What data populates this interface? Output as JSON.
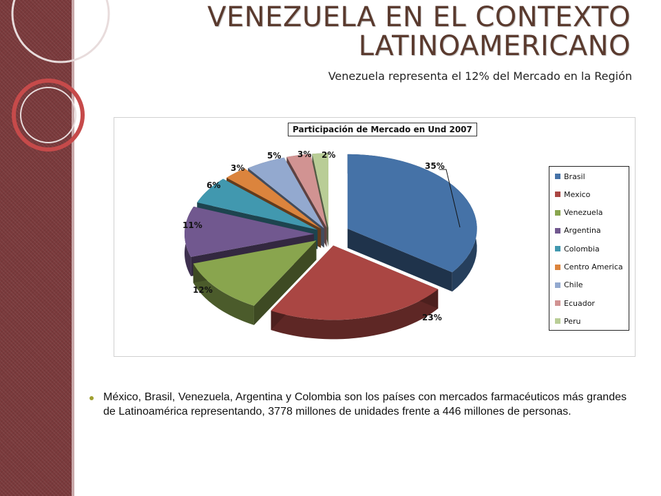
{
  "title_line1": "VENEZUELA EN EL CONTEXTO",
  "title_line2": "LATINOAMERICANO",
  "subtitle": "Venezuela representa el 12% del Mercado en la Región",
  "bullet_text": "México, Brasil, Venezuela, Argentina y Colombia son los países con mercados farmacéuticos más grandes de Latinoamérica representando, 3778 millones de unidades frente a 446 millones de personas.",
  "chart_data": {
    "type": "pie",
    "title": "Participación de Mercado en Und 2007",
    "categories": [
      "Brasil",
      "Mexico",
      "Venezuela",
      "Argentina",
      "Colombia",
      "Centro America",
      "Chile",
      "Ecuador",
      "Peru"
    ],
    "values": [
      35,
      23,
      12,
      11,
      6,
      3,
      5,
      3,
      2
    ],
    "labels": [
      "35%",
      "23%",
      "12%",
      "11%",
      "6%",
      "3%",
      "5%",
      "3%",
      "2%"
    ],
    "colors": [
      "#4572a7",
      "#aa4643",
      "#89a54e",
      "#71588f",
      "#4198af",
      "#db843d",
      "#93a9cf",
      "#d19392",
      "#b9cd96"
    ],
    "legend_position": "right",
    "exploded": true,
    "three_d": true
  }
}
